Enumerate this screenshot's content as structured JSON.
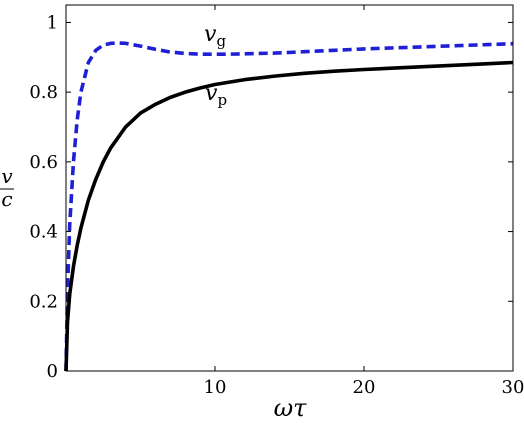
{
  "chart_data": {
    "type": "line",
    "xlabel": "ωτ",
    "ylabel": "v/c",
    "ylabel_parts": {
      "numerator": "v",
      "denominator": "c"
    },
    "xlim": [
      0,
      30
    ],
    "ylim": [
      0,
      1.05
    ],
    "x_ticks": [
      10,
      20,
      30
    ],
    "y_ticks": [
      0,
      0.2,
      0.4,
      0.6,
      0.8,
      1
    ],
    "y_tick_labels": [
      "0",
      "0.2",
      "0.4",
      "0.6",
      "0.8",
      "1"
    ],
    "x_tick_labels": [
      "10",
      "20",
      "30"
    ],
    "grid": false,
    "series": [
      {
        "name": "vg",
        "label_main": "v",
        "label_sub": "g",
        "color": "#1f1fd6",
        "style": "dashed",
        "x": [
          0,
          0.1,
          0.25,
          0.5,
          0.75,
          1,
          1.5,
          2,
          2.5,
          3,
          3.5,
          4,
          5,
          6,
          7,
          8,
          9,
          10,
          11,
          12,
          14,
          16,
          18,
          20,
          22,
          24,
          26,
          28,
          30
        ],
        "y": [
          0,
          0.23,
          0.42,
          0.6,
          0.72,
          0.8,
          0.885,
          0.92,
          0.935,
          0.94,
          0.941,
          0.94,
          0.932,
          0.923,
          0.915,
          0.911,
          0.909,
          0.909,
          0.909,
          0.91,
          0.912,
          0.916,
          0.92,
          0.924,
          0.927,
          0.93,
          0.933,
          0.936,
          0.939
        ]
      },
      {
        "name": "vp",
        "label_main": "v",
        "label_sub": "p",
        "color": "#000000",
        "style": "solid",
        "x": [
          0,
          0.1,
          0.25,
          0.5,
          0.75,
          1,
          1.5,
          2,
          2.5,
          3,
          4,
          5,
          6,
          7,
          8,
          9,
          10,
          12,
          14,
          16,
          18,
          20,
          22,
          24,
          26,
          28,
          30
        ],
        "y": [
          0,
          0.14,
          0.22,
          0.3,
          0.36,
          0.41,
          0.49,
          0.55,
          0.6,
          0.64,
          0.7,
          0.74,
          0.765,
          0.785,
          0.8,
          0.812,
          0.822,
          0.836,
          0.846,
          0.854,
          0.86,
          0.865,
          0.869,
          0.873,
          0.877,
          0.881,
          0.885
        ]
      }
    ]
  }
}
